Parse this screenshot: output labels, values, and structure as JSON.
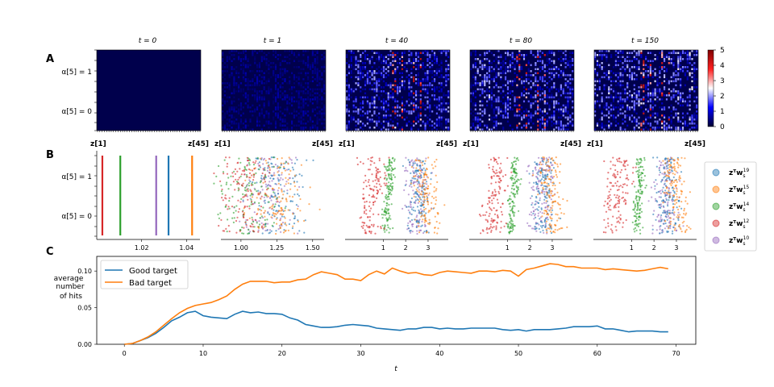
{
  "panel_labels": [
    "A",
    "B",
    "C"
  ],
  "z_first": "z[1]",
  "z_last": "z[45]",
  "alpha1_label": "α[5] = 1",
  "alpha0_label": "α[5] = 0",
  "chart_data": [
    {
      "type": "heatmap",
      "panel": "A",
      "subplots": [
        "t = 0",
        "t = 1",
        "t = 40",
        "t = 80",
        "t = 150"
      ],
      "x_range": [
        "z[1]",
        "z[45]"
      ],
      "y_labels": [
        "α[5] = 1",
        "α[5] = 0"
      ],
      "colorbar": {
        "min": 0,
        "max": 5,
        "ticks": [
          "0",
          "1",
          "2",
          "3",
          "4",
          "5"
        ]
      }
    },
    {
      "type": "scatter",
      "panel": "B",
      "y_labels": [
        "α[5] = 1",
        "α[5] = 0"
      ],
      "subplots": [
        {
          "ticks": [
            "1.02",
            "1.04"
          ],
          "xlim": [
            1.0,
            1.046
          ],
          "tick_values": [
            1.02,
            1.04
          ],
          "lines": {
            "w12": 1.0025,
            "w14": 1.0105,
            "w10": 1.0265,
            "w19": 1.032,
            "w15": 1.0425
          }
        },
        {
          "ticks": [
            "1.00",
            "1.25",
            "1.50"
          ],
          "xlim": [
            0.86,
            1.58
          ],
          "tick_values": [
            1.0,
            1.25,
            1.5
          ],
          "centers": {
            "w12": 1.03,
            "w14": 1.05,
            "w10": 1.2,
            "w15": 1.25,
            "w19": 1.25
          },
          "spread": 0.1
        },
        {
          "ticks": [
            "1",
            "2",
            "3"
          ],
          "xlim": [
            -0.7,
            3.9
          ],
          "tick_values": [
            1,
            2,
            3
          ],
          "centers": {
            "w12": 0.6,
            "w14": 1.3,
            "w10": 2.5,
            "w19": 2.6,
            "w15": 2.9
          },
          "spread": 0.28
        },
        {
          "ticks": [
            "1",
            "2",
            "3"
          ],
          "xlim": [
            -0.7,
            3.9
          ],
          "tick_values": [
            1,
            2,
            3
          ],
          "centers": {
            "w12": 0.6,
            "w14": 1.35,
            "w10": 2.5,
            "w19": 2.6,
            "w15": 2.9
          },
          "spread": 0.28
        },
        {
          "ticks": [
            "1",
            "2",
            "3"
          ],
          "xlim": [
            -0.7,
            3.9
          ],
          "tick_values": [
            1,
            2,
            3
          ],
          "centers": {
            "w12": 0.5,
            "w14": 1.4,
            "w10": 2.5,
            "w19": 2.6,
            "w15": 2.9
          },
          "spread": 0.28
        }
      ],
      "legend": [
        {
          "key": "w19",
          "label": "zᵀw",
          "sup": "19",
          "color": "#1f77b4"
        },
        {
          "key": "w15",
          "label": "zᵀw",
          "sup": "15",
          "color": "#ff7f0e"
        },
        {
          "key": "w14",
          "label": "zᵀw",
          "sup": "14",
          "color": "#2ca02c"
        },
        {
          "key": "w12",
          "label": "zᵀw",
          "sup": "12",
          "color": "#d62728"
        },
        {
          "key": "w10",
          "label": "zᵀw",
          "sup": "10",
          "color": "#9467bd"
        }
      ]
    },
    {
      "type": "line",
      "panel": "C",
      "xlabel": "t",
      "ylabel": [
        "average",
        "number",
        "of hits"
      ],
      "xlim": [
        -3.5,
        72.5
      ],
      "ylim": [
        0,
        0.12
      ],
      "x_ticks": [
        0,
        10,
        20,
        30,
        40,
        50,
        60,
        70
      ],
      "y_ticks": [
        0.0,
        0.05,
        0.1
      ],
      "y_tick_labels": [
        "0.00",
        "0.05",
        "0.10"
      ],
      "x": [
        0,
        1,
        2,
        3,
        4,
        5,
        6,
        7,
        8,
        9,
        10,
        11,
        12,
        13,
        14,
        15,
        16,
        17,
        18,
        19,
        20,
        21,
        22,
        23,
        24,
        25,
        26,
        27,
        28,
        29,
        30,
        31,
        32,
        33,
        34,
        35,
        36,
        37,
        38,
        39,
        40,
        41,
        42,
        43,
        44,
        45,
        46,
        47,
        48,
        49,
        50,
        51,
        52,
        53,
        54,
        55,
        56,
        57,
        58,
        59,
        60,
        61,
        62,
        63,
        64,
        65,
        66,
        67,
        68,
        69
      ],
      "series": [
        {
          "name": "Good target",
          "color": "#1f77b4",
          "values": [
            0.0,
            0.001,
            0.005,
            0.009,
            0.015,
            0.023,
            0.032,
            0.037,
            0.043,
            0.045,
            0.039,
            0.037,
            0.036,
            0.035,
            0.041,
            0.045,
            0.043,
            0.044,
            0.042,
            0.042,
            0.041,
            0.036,
            0.033,
            0.027,
            0.025,
            0.023,
            0.023,
            0.024,
            0.026,
            0.027,
            0.026,
            0.025,
            0.022,
            0.021,
            0.02,
            0.019,
            0.021,
            0.021,
            0.023,
            0.023,
            0.021,
            0.022,
            0.021,
            0.021,
            0.022,
            0.022,
            0.022,
            0.022,
            0.02,
            0.019,
            0.02,
            0.018,
            0.02,
            0.02,
            0.02,
            0.021,
            0.022,
            0.024,
            0.024,
            0.024,
            0.025,
            0.021,
            0.021,
            0.019,
            0.017,
            0.018,
            0.018,
            0.018,
            0.017,
            0.017
          ]
        },
        {
          "name": "Bad target",
          "color": "#ff7f0e",
          "values": [
            0.0,
            0.001,
            0.005,
            0.01,
            0.017,
            0.026,
            0.035,
            0.043,
            0.049,
            0.053,
            0.055,
            0.057,
            0.061,
            0.066,
            0.075,
            0.082,
            0.086,
            0.086,
            0.086,
            0.084,
            0.085,
            0.085,
            0.088,
            0.089,
            0.095,
            0.099,
            0.097,
            0.095,
            0.089,
            0.089,
            0.087,
            0.095,
            0.1,
            0.096,
            0.104,
            0.1,
            0.097,
            0.098,
            0.095,
            0.094,
            0.098,
            0.1,
            0.099,
            0.098,
            0.097,
            0.1,
            0.1,
            0.099,
            0.101,
            0.1,
            0.093,
            0.102,
            0.104,
            0.107,
            0.11,
            0.109,
            0.106,
            0.106,
            0.104,
            0.104,
            0.104,
            0.102,
            0.103,
            0.102,
            0.101,
            0.1,
            0.101,
            0.103,
            0.105,
            0.103
          ]
        }
      ]
    }
  ]
}
